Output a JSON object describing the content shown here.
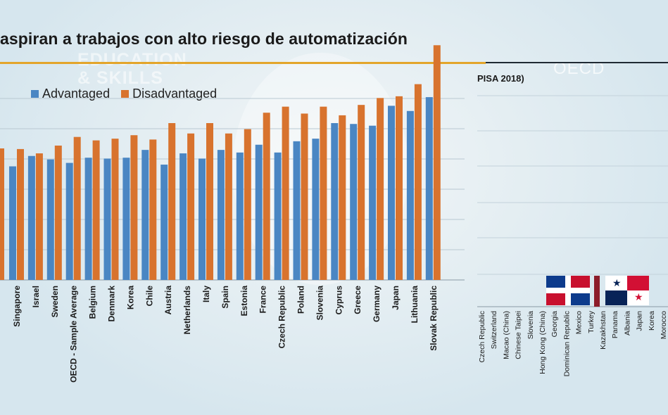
{
  "title": "aspiran a trabajos con alto riesgo de automatización",
  "watermark": {
    "line1": "EDUCATION",
    "line2": "& SKILLS",
    "brand": "OECD"
  },
  "right_panel": {
    "subtitle": "PISA 2018)",
    "countries": [
      "Czech Republic",
      "Switzerland",
      "Macao (China)",
      "Chinese Taipei",
      "Slovenia",
      "Hong Kong (China)",
      "Georgia",
      "Dominican Republic",
      "Mexico",
      "Turkey",
      "Kazakhstan",
      "Panama",
      "Albania",
      "Japan",
      "Korea",
      "Morocco"
    ]
  },
  "flags": [
    "dominican-republic-flag",
    "panama-flag"
  ],
  "colors": {
    "advantaged": "#4a86c3",
    "disadvantaged": "#d8732e",
    "background": "#dce9f0"
  },
  "chart_data": {
    "type": "bar",
    "categories": [
      "Singapore",
      "Israel",
      "Sweden",
      "OECD - Sample Average",
      "Belgium",
      "Denmark",
      "Korea",
      "Chile",
      "Austria",
      "Netherlands",
      "Italy",
      "Spain",
      "Estonia",
      "France",
      "Czech Republic",
      "Poland",
      "Slovenia",
      "Cyprus",
      "Greece",
      "Germany",
      "Japan",
      "Lithuania",
      "Slovak Republic"
    ],
    "series": [
      {
        "name": "Advantaged",
        "values": [
          5.0,
          6.2,
          5.8,
          5.4,
          6.0,
          5.9,
          6.0,
          6.9,
          5.2,
          6.5,
          5.9,
          6.9,
          6.6,
          7.5,
          6.6,
          7.9,
          8.2,
          10.0,
          9.9,
          9.7,
          12.0,
          11.4,
          13.0
        ]
      },
      {
        "name": "Disadvantaged",
        "values": [
          7.0,
          6.5,
          7.4,
          8.4,
          8.0,
          8.2,
          8.6,
          8.1,
          10.0,
          8.8,
          10.0,
          8.8,
          9.3,
          11.2,
          11.9,
          11.1,
          11.9,
          10.9,
          12.1,
          12.9,
          13.1,
          14.5,
          19.0
        ]
      }
    ],
    "legend": [
      "Advantaged",
      "Disadvantaged"
    ],
    "legend_position": "top-left",
    "ylim": [
      -14,
      20
    ],
    "grid": true
  }
}
